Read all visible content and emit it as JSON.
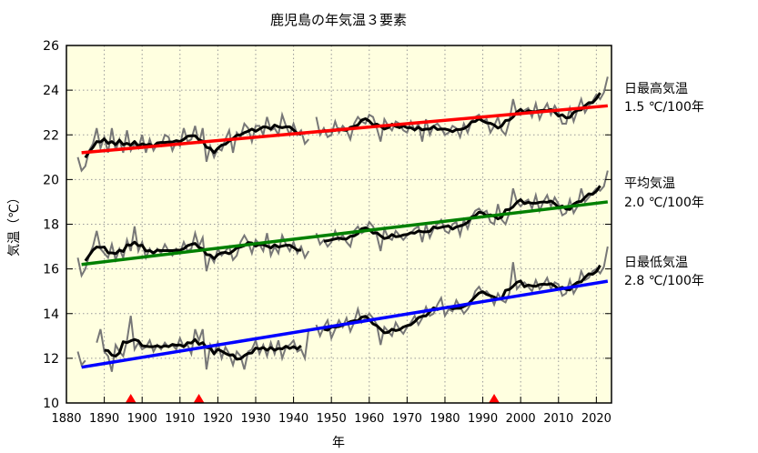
{
  "chart_data": {
    "type": "line",
    "title": "鹿児島の年気温３要素",
    "xlabel": "年",
    "ylabel": "気温（℃）",
    "xlim": [
      1880,
      2024
    ],
    "ylim": [
      10,
      26
    ],
    "xticks": [
      1880,
      1890,
      1900,
      1910,
      1920,
      1930,
      1940,
      1950,
      1960,
      1970,
      1980,
      1990,
      2000,
      2010,
      2020
    ],
    "yticks": [
      10,
      12,
      14,
      16,
      18,
      20,
      22,
      24,
      26
    ],
    "grid": true,
    "background": "#FFFFE0",
    "start_year": 1883,
    "running_mean_window": 5,
    "series": [
      {
        "name": "日最高気温",
        "trend_label": "1.5 ℃/100年",
        "trend_color": "#FF0000",
        "trend": {
          "x": [
            1884,
            2023
          ],
          "y": [
            21.2,
            23.3
          ]
        },
        "annual": [
          21.0,
          20.4,
          20.6,
          21.3,
          21.6,
          22.3,
          21.4,
          21.9,
          21.2,
          22.3,
          21.3,
          21.8,
          21.2,
          22.2,
          21.3,
          21.6,
          21.4,
          22.0,
          21.2,
          21.8,
          21.3,
          21.6,
          21.5,
          22.0,
          21.9,
          21.3,
          21.7,
          21.5,
          22.3,
          21.7,
          21.8,
          22.4,
          21.6,
          22.3,
          20.8,
          21.5,
          21.0,
          21.4,
          21.3,
          21.8,
          22.2,
          21.2,
          22.1,
          21.9,
          22.5,
          22.3,
          21.7,
          22.4,
          22.4,
          22.0,
          22.8,
          22.2,
          22.3,
          22.0,
          22.9,
          22.4,
          22.0,
          22.5,
          22.0,
          22.2,
          21.6,
          21.8,
          null,
          22.8,
          22.0,
          22.3,
          21.9,
          22.0,
          22.6,
          22.1,
          22.4,
          22.2,
          21.8,
          22.5,
          22.8,
          22.6,
          22.5,
          22.9,
          22.8,
          22.3,
          21.7,
          22.7,
          22.4,
          22.2,
          22.6,
          22.5,
          22.2,
          22.1,
          22.6,
          22.2,
          22.5,
          21.7,
          22.7,
          22.0,
          22.4,
          22.5,
          22.3,
          22.0,
          22.1,
          22.4,
          22.3,
          21.9,
          22.5,
          22.1,
          22.6,
          22.8,
          22.9,
          22.6,
          22.7,
          22.1,
          22.4,
          22.8,
          22.2,
          22.0,
          22.6,
          23.6,
          22.9,
          22.9,
          23.1,
          23.2,
          22.8,
          23.4,
          22.7,
          23.1,
          23.4,
          22.9,
          23.3,
          23.0,
          22.5,
          22.5,
          23.2,
          22.6,
          23.1,
          23.6,
          23.0,
          23.3,
          23.5,
          23.8,
          23.6,
          23.9,
          24.6
        ]
      },
      {
        "name": "平均気温",
        "trend_label": "2.0 ℃/100年",
        "trend_color": "#008000",
        "trend": {
          "x": [
            1884,
            2023
          ],
          "y": [
            16.2,
            19.0
          ]
        },
        "annual": [
          16.5,
          15.7,
          16.0,
          16.6,
          17.0,
          17.7,
          16.9,
          16.7,
          16.5,
          17.1,
          16.4,
          16.9,
          16.5,
          17.3,
          16.8,
          17.9,
          16.8,
          17.2,
          16.5,
          16.9,
          16.6,
          16.9,
          16.7,
          17.1,
          16.8,
          16.6,
          16.9,
          16.7,
          17.2,
          16.8,
          16.9,
          17.6,
          17.0,
          17.4,
          15.9,
          16.6,
          16.3,
          16.9,
          16.6,
          16.8,
          17.0,
          16.4,
          16.6,
          17.2,
          17.5,
          17.2,
          16.7,
          17.3,
          17.1,
          16.8,
          17.6,
          16.6,
          17.0,
          16.7,
          17.5,
          17.1,
          16.8,
          17.2,
          16.7,
          17.0,
          16.5,
          16.8,
          null,
          17.6,
          17.1,
          17.3,
          17.0,
          17.2,
          17.7,
          17.3,
          17.5,
          17.2,
          17.0,
          17.7,
          17.9,
          17.6,
          17.7,
          18.1,
          17.9,
          17.5,
          16.8,
          17.8,
          17.4,
          17.3,
          17.7,
          17.5,
          17.3,
          17.5,
          17.6,
          17.8,
          17.9,
          17.2,
          18.0,
          17.4,
          17.8,
          18.0,
          18.2,
          17.7,
          17.6,
          18.0,
          18.1,
          17.5,
          18.2,
          17.8,
          18.3,
          18.6,
          18.7,
          18.5,
          18.6,
          18.1,
          18.0,
          18.9,
          18.2,
          18.0,
          18.5,
          19.6,
          19.0,
          18.8,
          19.0,
          19.1,
          18.7,
          19.3,
          18.6,
          19.0,
          19.3,
          18.8,
          19.2,
          18.9,
          18.4,
          18.5,
          19.1,
          18.5,
          18.8,
          19.6,
          19.0,
          19.2,
          19.4,
          19.6,
          19.5,
          19.7,
          20.4
        ]
      },
      {
        "name": "日最低気温",
        "trend_label": "2.8 ℃/100年",
        "trend_color": "#0000FF",
        "trend": {
          "x": [
            1884,
            2023
          ],
          "y": [
            11.6,
            15.45
          ]
        },
        "annual": [
          12.3,
          11.7,
          11.9,
          null,
          null,
          12.7,
          13.3,
          12.3,
          12.1,
          11.4,
          12.6,
          12.3,
          12.1,
          12.8,
          13.9,
          12.4,
          12.7,
          12.4,
          12.5,
          12.8,
          12.3,
          12.6,
          12.4,
          12.7,
          12.5,
          12.6,
          12.4,
          12.9,
          12.5,
          12.6,
          12.2,
          13.3,
          12.8,
          13.3,
          11.5,
          12.6,
          12.2,
          12.7,
          12.0,
          12.5,
          12.2,
          11.7,
          12.3,
          12.1,
          11.5,
          12.3,
          12.4,
          12.8,
          12.2,
          12.6,
          12.1,
          12.7,
          12.2,
          12.8,
          12.0,
          12.5,
          12.6,
          12.8,
          12.3,
          12.4,
          12.0,
          13.3,
          null,
          13.5,
          13.0,
          13.4,
          13.7,
          12.9,
          13.3,
          13.7,
          13.4,
          13.8,
          13.2,
          13.6,
          14.2,
          13.6,
          13.8,
          14.0,
          13.8,
          13.5,
          12.6,
          13.4,
          13.2,
          13.0,
          13.6,
          13.3,
          13.1,
          13.4,
          13.6,
          13.9,
          13.5,
          13.8,
          14.3,
          13.9,
          14.0,
          14.4,
          14.7,
          13.9,
          14.2,
          14.1,
          14.6,
          14.3,
          14.0,
          14.2,
          14.5,
          15.0,
          15.2,
          14.9,
          15.0,
          14.8,
          14.4,
          14.9,
          14.6,
          14.5,
          14.9,
          16.3,
          15.1,
          15.3,
          15.4,
          15.2,
          15.0,
          15.5,
          15.1,
          15.3,
          15.6,
          15.1,
          15.4,
          15.3,
          14.8,
          14.9,
          15.5,
          14.9,
          15.2,
          15.9,
          15.5,
          15.6,
          15.9,
          16.0,
          15.8,
          16.1,
          17.0
        ]
      }
    ],
    "markers": {
      "years": [
        1897,
        1915,
        1993
      ],
      "shape": "triangle",
      "color": "#FF0000"
    }
  }
}
